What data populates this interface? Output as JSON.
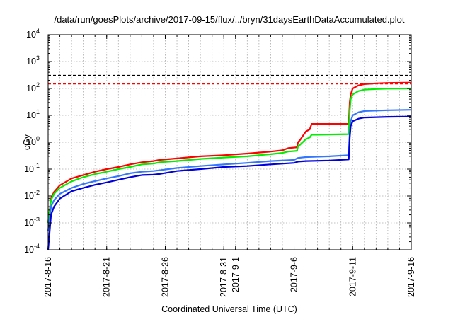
{
  "chart_data": {
    "type": "line",
    "title": "/data/run/goesPlots/archive/2017-09-15/flux/../bryn/31daysEarthDataAccumulated.plot",
    "xlabel": "Coordinated Universal Time (UTC)",
    "ylabel": "cGy",
    "yscale": "log",
    "ylim": [
      0.0001,
      10000
    ],
    "xlim": [
      "2017-08-16",
      "2017-09-16"
    ],
    "grid": true,
    "x_ticks": [
      {
        "date": "2017-08-16",
        "label": "2017-8-16"
      },
      {
        "date": "2017-08-21",
        "label": "2017-8-21"
      },
      {
        "date": "2017-08-26",
        "label": "2017-8-26"
      },
      {
        "date": "2017-08-31",
        "label": "2017-8-31"
      },
      {
        "date": "2017-09-01",
        "label": "2017-9-1"
      },
      {
        "date": "2017-09-06",
        "label": "2017-9-6"
      },
      {
        "date": "2017-09-11",
        "label": "2017-9-11"
      },
      {
        "date": "2017-09-16",
        "label": "2017-9-16"
      }
    ],
    "y_ticks": [
      {
        "value": 0.0001,
        "base": "10",
        "exp": "-4"
      },
      {
        "value": 0.001,
        "base": "10",
        "exp": "-3"
      },
      {
        "value": 0.01,
        "base": "10",
        "exp": "-2"
      },
      {
        "value": 0.1,
        "base": "10",
        "exp": "-1"
      },
      {
        "value": 1,
        "base": "10",
        "exp": "0"
      },
      {
        "value": 10,
        "base": "10",
        "exp": "1"
      },
      {
        "value": 100,
        "base": "10",
        "exp": "2"
      },
      {
        "value": 1000,
        "base": "10",
        "exp": "3"
      },
      {
        "value": 10000,
        "base": "10",
        "exp": "4"
      }
    ],
    "thresholds": [
      {
        "value": 300,
        "color": "#000000",
        "dash": true
      },
      {
        "value": 150,
        "color": "#ff0000",
        "dash": true
      }
    ],
    "series": [
      {
        "color": "#ff0000",
        "points": [
          [
            "2017-08-16",
            0.001
          ],
          [
            "2017-08-16T06",
            0.008
          ],
          [
            "2017-08-16T12",
            0.014
          ],
          [
            "2017-08-17",
            0.025
          ],
          [
            "2017-08-18",
            0.045
          ],
          [
            "2017-08-19",
            0.06
          ],
          [
            "2017-08-20",
            0.08
          ],
          [
            "2017-08-21",
            0.1
          ],
          [
            "2017-08-22",
            0.12
          ],
          [
            "2017-08-23",
            0.15
          ],
          [
            "2017-08-24",
            0.18
          ],
          [
            "2017-08-25",
            0.2
          ],
          [
            "2017-08-25T12",
            0.22
          ],
          [
            "2017-08-27",
            0.25
          ],
          [
            "2017-08-29",
            0.3
          ],
          [
            "2017-08-31",
            0.33
          ],
          [
            "2017-09-02",
            0.38
          ],
          [
            "2017-09-04",
            0.45
          ],
          [
            "2017-09-05",
            0.5
          ],
          [
            "2017-09-05T12",
            0.6
          ],
          [
            "2017-09-06T06",
            0.65
          ],
          [
            "2017-09-06T08",
            1.0
          ],
          [
            "2017-09-06T12",
            1.2
          ],
          [
            "2017-09-07",
            2.5
          ],
          [
            "2017-09-07T08",
            3.0
          ],
          [
            "2017-09-07T12",
            4.8
          ],
          [
            "2017-09-08",
            4.8
          ],
          [
            "2017-09-10T16",
            4.8
          ],
          [
            "2017-09-10T18",
            30
          ],
          [
            "2017-09-10T20",
            60
          ],
          [
            "2017-09-11",
            100
          ],
          [
            "2017-09-11T12",
            130
          ],
          [
            "2017-09-12",
            145
          ],
          [
            "2017-09-13",
            155
          ],
          [
            "2017-09-14",
            160
          ],
          [
            "2017-09-16",
            165
          ]
        ]
      },
      {
        "color": "#00ee00",
        "points": [
          [
            "2017-08-16",
            0.001
          ],
          [
            "2017-08-16T06",
            0.007
          ],
          [
            "2017-08-16T12",
            0.012
          ],
          [
            "2017-08-17",
            0.02
          ],
          [
            "2017-08-18",
            0.035
          ],
          [
            "2017-08-19",
            0.05
          ],
          [
            "2017-08-20",
            0.065
          ],
          [
            "2017-08-21",
            0.08
          ],
          [
            "2017-08-22",
            0.1
          ],
          [
            "2017-08-23",
            0.12
          ],
          [
            "2017-08-24",
            0.15
          ],
          [
            "2017-08-25",
            0.16
          ],
          [
            "2017-08-25T12",
            0.18
          ],
          [
            "2017-08-27",
            0.2
          ],
          [
            "2017-08-29",
            0.24
          ],
          [
            "2017-08-31",
            0.27
          ],
          [
            "2017-09-02",
            0.3
          ],
          [
            "2017-09-04",
            0.36
          ],
          [
            "2017-09-05",
            0.4
          ],
          [
            "2017-09-05T12",
            0.45
          ],
          [
            "2017-09-06T06",
            0.48
          ],
          [
            "2017-09-06T08",
            0.7
          ],
          [
            "2017-09-06T12",
            0.8
          ],
          [
            "2017-09-07",
            1.3
          ],
          [
            "2017-09-07T08",
            1.5
          ],
          [
            "2017-09-07T12",
            1.9
          ],
          [
            "2017-09-08",
            1.9
          ],
          [
            "2017-09-10T16",
            2.0
          ],
          [
            "2017-09-10T18",
            15
          ],
          [
            "2017-09-10T20",
            40
          ],
          [
            "2017-09-11",
            60
          ],
          [
            "2017-09-11T12",
            80
          ],
          [
            "2017-09-12",
            90
          ],
          [
            "2017-09-13",
            95
          ],
          [
            "2017-09-14",
            98
          ],
          [
            "2017-09-16",
            100
          ]
        ]
      },
      {
        "color": "#3377ff",
        "points": [
          [
            "2017-08-16",
            0.0005
          ],
          [
            "2017-08-16T06",
            0.004
          ],
          [
            "2017-08-16T12",
            0.007
          ],
          [
            "2017-08-17",
            0.012
          ],
          [
            "2017-08-18",
            0.02
          ],
          [
            "2017-08-19",
            0.028
          ],
          [
            "2017-08-20",
            0.036
          ],
          [
            "2017-08-21",
            0.045
          ],
          [
            "2017-08-22",
            0.055
          ],
          [
            "2017-08-23",
            0.07
          ],
          [
            "2017-08-24",
            0.08
          ],
          [
            "2017-08-25",
            0.085
          ],
          [
            "2017-08-25T12",
            0.09
          ],
          [
            "2017-08-27",
            0.11
          ],
          [
            "2017-08-29",
            0.13
          ],
          [
            "2017-08-31",
            0.15
          ],
          [
            "2017-09-02",
            0.17
          ],
          [
            "2017-09-04",
            0.2
          ],
          [
            "2017-09-06",
            0.22
          ],
          [
            "2017-09-06T08",
            0.26
          ],
          [
            "2017-09-07",
            0.28
          ],
          [
            "2017-09-09",
            0.3
          ],
          [
            "2017-09-10T16",
            0.33
          ],
          [
            "2017-09-10T18",
            2.5
          ],
          [
            "2017-09-10T20",
            6
          ],
          [
            "2017-09-11",
            10
          ],
          [
            "2017-09-11T12",
            13
          ],
          [
            "2017-09-12",
            14.5
          ],
          [
            "2017-09-14",
            15.5
          ],
          [
            "2017-09-16",
            16
          ]
        ]
      },
      {
        "color": "#0000dd",
        "points": [
          [
            "2017-08-16",
            0.0001
          ],
          [
            "2017-08-16T06",
            0.002
          ],
          [
            "2017-08-16T12",
            0.004
          ],
          [
            "2017-08-17",
            0.008
          ],
          [
            "2017-08-18",
            0.015
          ],
          [
            "2017-08-19",
            0.02
          ],
          [
            "2017-08-20",
            0.026
          ],
          [
            "2017-08-21",
            0.032
          ],
          [
            "2017-08-22",
            0.04
          ],
          [
            "2017-08-23",
            0.05
          ],
          [
            "2017-08-24",
            0.06
          ],
          [
            "2017-08-25",
            0.062
          ],
          [
            "2017-08-25T12",
            0.066
          ],
          [
            "2017-08-27",
            0.085
          ],
          [
            "2017-08-29",
            0.1
          ],
          [
            "2017-08-31",
            0.12
          ],
          [
            "2017-09-02",
            0.13
          ],
          [
            "2017-09-04",
            0.15
          ],
          [
            "2017-09-06",
            0.17
          ],
          [
            "2017-09-06T08",
            0.19
          ],
          [
            "2017-09-07",
            0.2
          ],
          [
            "2017-09-09",
            0.21
          ],
          [
            "2017-09-10T16",
            0.23
          ],
          [
            "2017-09-10T18",
            1.5
          ],
          [
            "2017-09-10T20",
            4
          ],
          [
            "2017-09-11",
            6
          ],
          [
            "2017-09-11T12",
            7.5
          ],
          [
            "2017-09-12",
            8.3
          ],
          [
            "2017-09-14",
            8.8
          ],
          [
            "2017-09-16",
            9
          ]
        ]
      }
    ]
  }
}
